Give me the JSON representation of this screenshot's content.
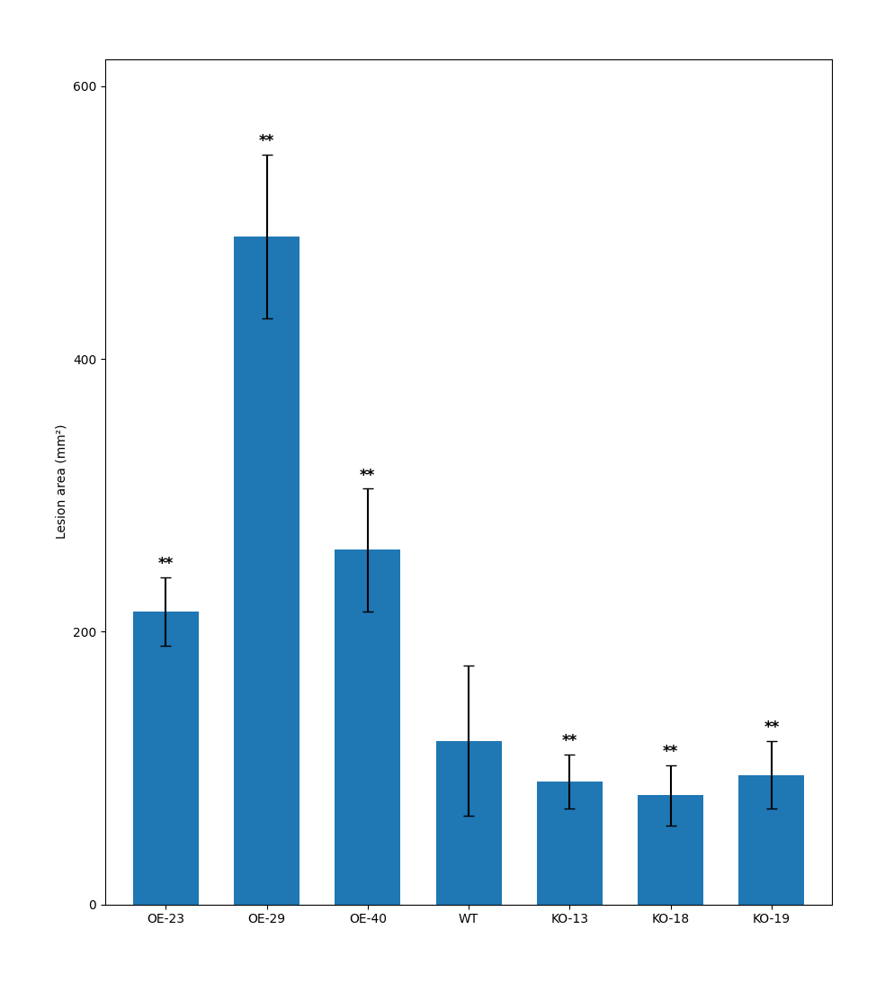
{
  "chart_data": {
    "type": "bar",
    "categories": [
      "OE-23",
      "OE-29",
      "OE-40",
      "WT",
      "KO-13",
      "KO-18",
      "KO-19"
    ],
    "values": [
      215,
      490,
      260,
      120,
      90,
      80,
      95
    ],
    "errors": [
      25,
      60,
      45,
      55,
      20,
      22,
      25
    ],
    "significance": [
      "**",
      "**",
      "**",
      null,
      "**",
      "**",
      "**"
    ],
    "ylabel": "Lesion area (mm²)",
    "ylim": [
      0,
      620
    ],
    "yticks": [
      0,
      200,
      400,
      600
    ],
    "grid": false
  }
}
